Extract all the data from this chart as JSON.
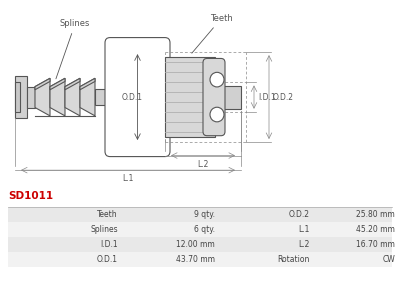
{
  "title": "SD1011",
  "title_color": "#cc0000",
  "table_data": [
    [
      "Teeth",
      "9 qty.",
      "O.D.2",
      "25.80 mm"
    ],
    [
      "Splines",
      "6 qty.",
      "L.1",
      "45.20 mm"
    ],
    [
      "I.D.1",
      "12.00 mm",
      "L.2",
      "16.70 mm"
    ],
    [
      "O.D.1",
      "43.70 mm",
      "Rotation",
      "CW"
    ]
  ],
  "gray_fill": "#d0d0d0",
  "mid_gray": "#b0b0b0",
  "light_gray": "#e8e8e8",
  "dark_line": "#555555",
  "dim_color": "#888888",
  "white": "#ffffff",
  "row_bg_even": "#e8e8e8",
  "row_bg_odd": "#f2f2f2"
}
